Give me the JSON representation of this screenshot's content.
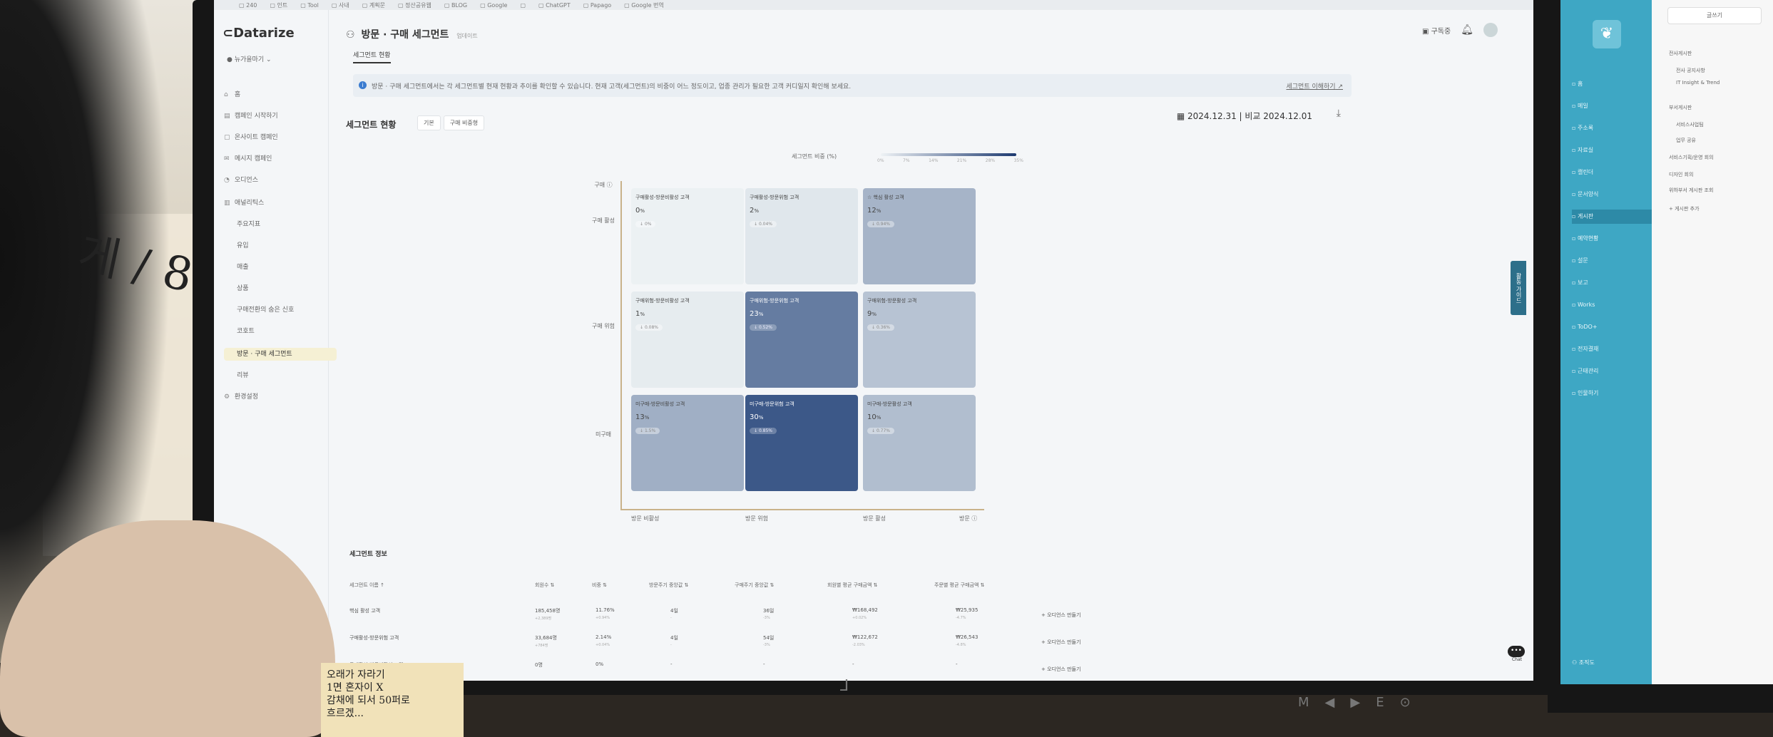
{
  "browser": {
    "bookmarks": [
      "240",
      "인트",
      "Tool",
      "사내",
      "계획문",
      "정산공유웹",
      "BLOG",
      "Google",
      "",
      "ChatGPT",
      "Papago",
      "Google 번역"
    ]
  },
  "app": {
    "logo": "Datarize",
    "workspace": "뉴가을마기"
  },
  "nav": [
    {
      "icon": "⌂",
      "label": "홈"
    },
    {
      "icon": "▤",
      "label": "캠페인 시작하기"
    },
    {
      "icon": "▢",
      "label": "온사이트 캠페인"
    },
    {
      "icon": "✉",
      "label": "메시지 캠페인"
    },
    {
      "icon": "◔",
      "label": "오디언스"
    },
    {
      "icon": "▥",
      "label": "애널리틱스"
    },
    {
      "icon": "",
      "label": "주요지표"
    },
    {
      "icon": "",
      "label": "유입"
    },
    {
      "icon": "",
      "label": "매출"
    },
    {
      "icon": "",
      "label": "상품"
    },
    {
      "icon": "",
      "label": "구매전환의 숨은 신호"
    },
    {
      "icon": "",
      "label": "코호트"
    },
    {
      "icon": "",
      "label": "방문 · 구매 세그먼트"
    },
    {
      "icon": "",
      "label": "리뷰"
    },
    {
      "icon": "⚙",
      "label": "환경설정"
    }
  ],
  "header": {
    "page_title": "방문 · 구매 세그먼트",
    "title_badge": "업데이트",
    "subtab": "세그먼트 현황",
    "upgrade_label": "구독중",
    "bell": "bell-icon"
  },
  "info_bar": {
    "text": "방문 · 구매 세그먼트에서는 각 세그먼트별 현재 현황과 추이를 확인할 수 있습니다. 현재 고객(세그먼트)의 비중이 어느 정도이고, 업종 관리가 필요한 고객 커디일지 확인해 보세요.",
    "link": "세그먼트 이해하기"
  },
  "segment": {
    "title": "세그먼트 현황",
    "toggle": [
      "기본",
      "구매 비중형"
    ],
    "date": "2024.12.31 | 비교 2024.12.01"
  },
  "legend": {
    "label": "세그먼트 비중 (%)",
    "ticks": [
      "0%",
      "7%",
      "14%",
      "21%",
      "28%",
      "35%"
    ]
  },
  "axes": {
    "y": [
      "구매 활성",
      "구매 위험",
      "미구매"
    ],
    "y_label": "구매",
    "x": [
      "방문 비활성",
      "방문 위험",
      "방문 활성"
    ],
    "x_label": "방문"
  },
  "chart_data": {
    "type": "heatmap",
    "title": "세그먼트 현황",
    "rows": [
      "구매 활성",
      "구매 위험",
      "미구매"
    ],
    "cols": [
      "방문 비활성",
      "방문 위험",
      "방문 활성"
    ],
    "cells": [
      {
        "row": 0,
        "col": 0,
        "name": "구매활성-방문비활성 고객",
        "value": 0,
        "change": "0%"
      },
      {
        "row": 0,
        "col": 1,
        "name": "구매활성-방문위험 고객",
        "value": 2,
        "change": "0.04%"
      },
      {
        "row": 0,
        "col": 2,
        "name": "핵심 활성 고객",
        "value": 12,
        "change": "0.94%",
        "badge": "star"
      },
      {
        "row": 1,
        "col": 0,
        "name": "구매위험-방문비활성 고객",
        "value": 1,
        "change": "0.08%"
      },
      {
        "row": 1,
        "col": 1,
        "name": "구매위험-방문위험 고객",
        "value": 23,
        "change": "0.52%"
      },
      {
        "row": 1,
        "col": 2,
        "name": "구매위험-방문활성 고객",
        "value": 9,
        "change": "0.36%"
      },
      {
        "row": 2,
        "col": 0,
        "name": "미구매-방문비활성 고객",
        "value": 13,
        "change": "1.5%"
      },
      {
        "row": 2,
        "col": 1,
        "name": "미구매-방문위험 고객",
        "value": 30,
        "change": "0.85%"
      },
      {
        "row": 2,
        "col": 2,
        "name": "미구매-방문활성 고객",
        "value": 10,
        "change": "0.77%"
      }
    ],
    "scale": [
      0,
      35
    ],
    "value_suffix": "%"
  },
  "table": {
    "title": "세그먼트 정보",
    "headers": [
      "세그먼트 이름",
      "회원수",
      "비중",
      "방문주기 중앙값",
      "구매주기 중앙값",
      "회원별 평균 구매금액",
      "주문별 평균 구매금액"
    ],
    "rows": [
      {
        "name": "핵심 활성 고객",
        "members": "185,458명",
        "members_sub": "+2,389명",
        "ratio": "11.76%",
        "ratio_sub": "+0.94%",
        "visit": "4일",
        "visit_sub": "-",
        "buy": "36일",
        "buy_sub": "-3%",
        "avg_member": "₩168,492",
        "avg_member_sub": "+0.02%",
        "avg_order": "₩25,935",
        "avg_order_sub": "-4.7%",
        "action": "오디언스 만들기"
      },
      {
        "name": "구매활성-방문위험 고객",
        "members": "33,684명",
        "members_sub": "+784명",
        "ratio": "2.14%",
        "ratio_sub": "+0.04%",
        "visit": "4일",
        "visit_sub": "-",
        "buy": "54일",
        "buy_sub": "-3%",
        "avg_member": "₩122,672",
        "avg_member_sub": "-2.03%",
        "avg_order": "₩26,543",
        "avg_order_sub": "-4.8%",
        "action": "오디언스 만들기"
      },
      {
        "name": "구매활성-방문비활성 고객",
        "members": "0명",
        "members_sub": "",
        "ratio": "0%",
        "ratio_sub": "",
        "visit": "-",
        "visit_sub": "",
        "buy": "-",
        "buy_sub": "",
        "avg_member": "-",
        "avg_member_sub": "",
        "avg_order": "-",
        "avg_order_sub": "",
        "action": "오디언스 만들기"
      }
    ]
  },
  "side_tab": "활동 가이드",
  "chat_label": "Chat",
  "second_screen": {
    "left_items": [
      {
        "label": "홈",
        "active": false
      },
      {
        "label": "메일",
        "active": false
      },
      {
        "label": "주소록",
        "active": false
      },
      {
        "label": "자료실",
        "active": false
      },
      {
        "label": "캘린더",
        "active": false
      },
      {
        "label": "문서양식",
        "active": false
      },
      {
        "label": "게시판",
        "active": true
      },
      {
        "label": "예약현황",
        "active": false
      },
      {
        "label": "설문",
        "active": false
      },
      {
        "label": "보고",
        "active": false
      },
      {
        "label": "Works",
        "active": false
      },
      {
        "label": "ToDO+",
        "active": false
      },
      {
        "label": "전자결재",
        "active": false
      },
      {
        "label": "근태관리",
        "active": false
      },
      {
        "label": "인물하기",
        "active": false
      }
    ],
    "bottom_left": "조직도",
    "new_button": "글쓰기",
    "right_items": [
      "전사게시판",
      "전사 공지사항",
      "IT Insight & Trend",
      "부서게시판",
      "서비스사업팀",
      "업무 공유",
      "서비스기획/운영 회의",
      "디자인 회의",
      "위하부서 게시판 조회",
      "+ 게시판 추가"
    ],
    "logo_icon": "leaf-icon"
  },
  "desk_note": {
    "lines": [
      "오래가 자라기",
      "1면 혼자이 X",
      "감채에 되서 50퍼로",
      "흐르겠..."
    ]
  },
  "wall_text": "게 / 8"
}
